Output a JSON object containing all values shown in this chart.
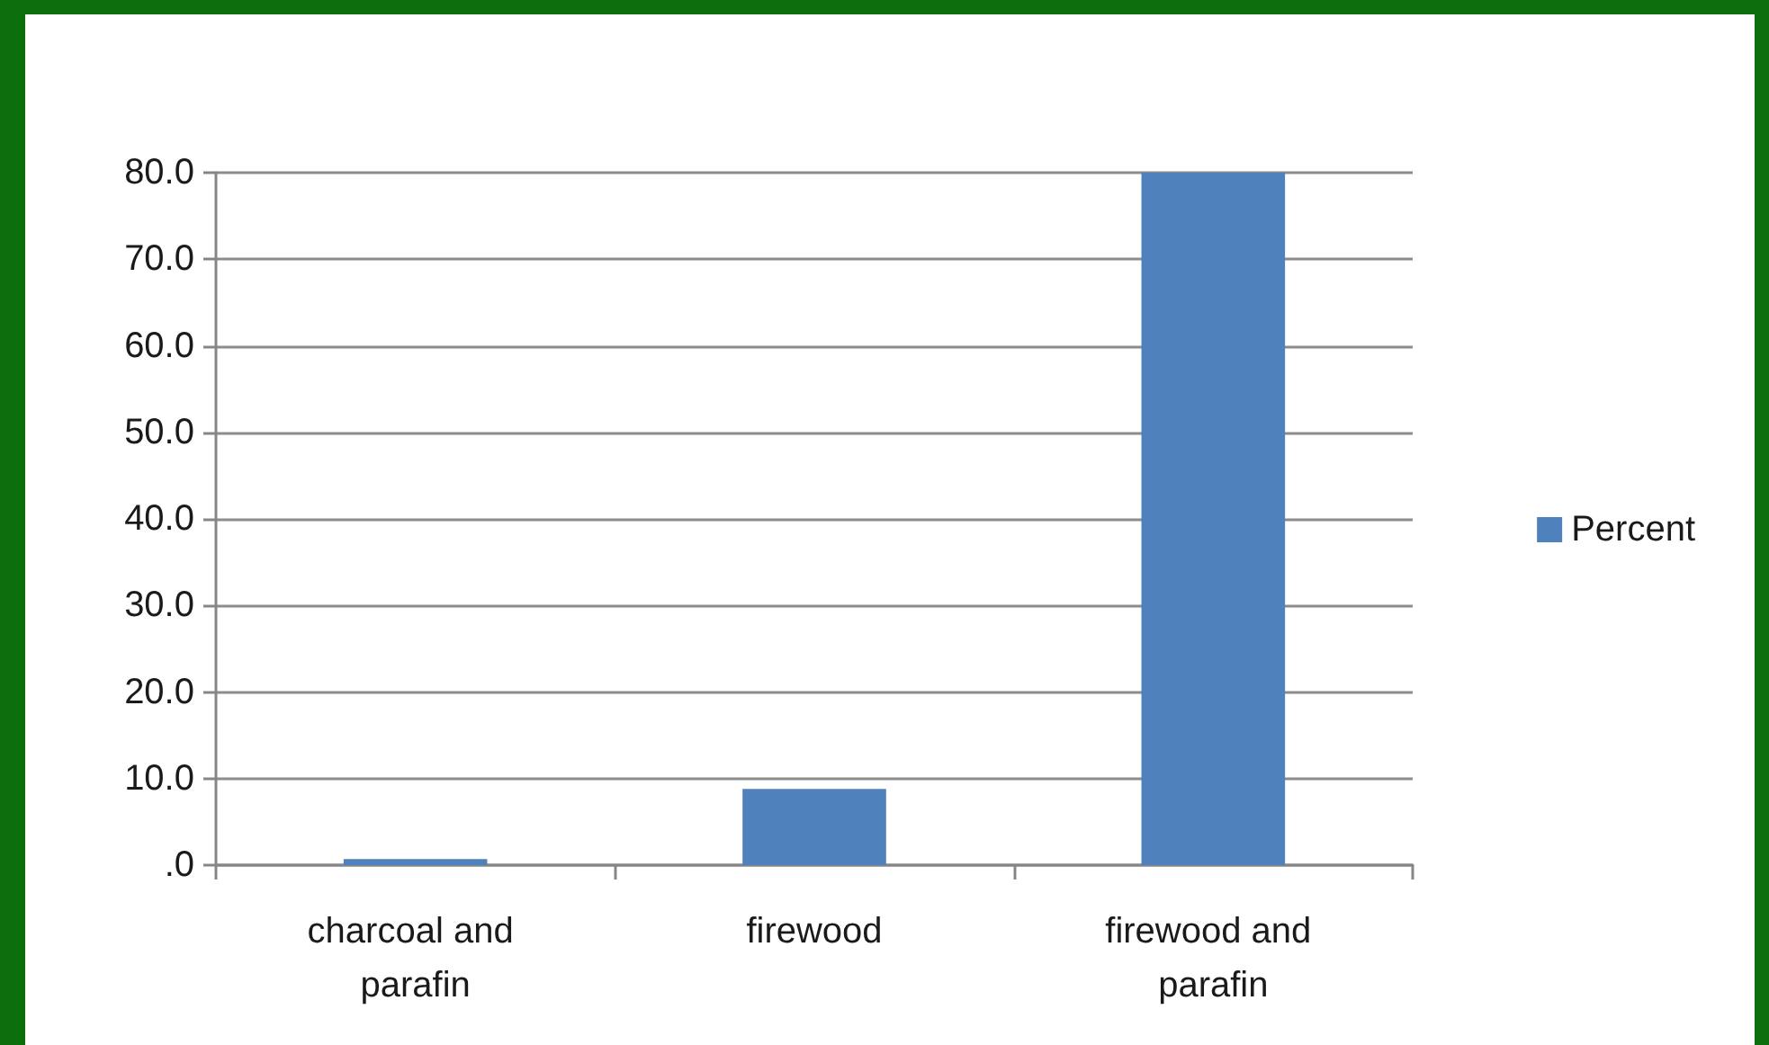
{
  "chart_data": {
    "type": "bar",
    "categories": [
      "charcoal and parafin",
      "firewood",
      "firewood and parafin"
    ],
    "series": [
      {
        "name": "Percent",
        "color": "#4f81bd",
        "values": [
          0.7,
          8.8,
          80.0
        ]
      }
    ],
    "ylim": [
      0,
      80
    ],
    "yticks": [
      {
        "value": 0,
        "label": ".0"
      },
      {
        "value": 10,
        "label": "10.0"
      },
      {
        "value": 20,
        "label": "20.0"
      },
      {
        "value": 30,
        "label": "30.0"
      },
      {
        "value": 40,
        "label": "40.0"
      },
      {
        "value": 50,
        "label": "50.0"
      },
      {
        "value": 60,
        "label": "60.0"
      },
      {
        "value": 70,
        "label": "70.0"
      },
      {
        "value": 80,
        "label": "80.0"
      }
    ],
    "grid": "y",
    "legend": "right"
  }
}
